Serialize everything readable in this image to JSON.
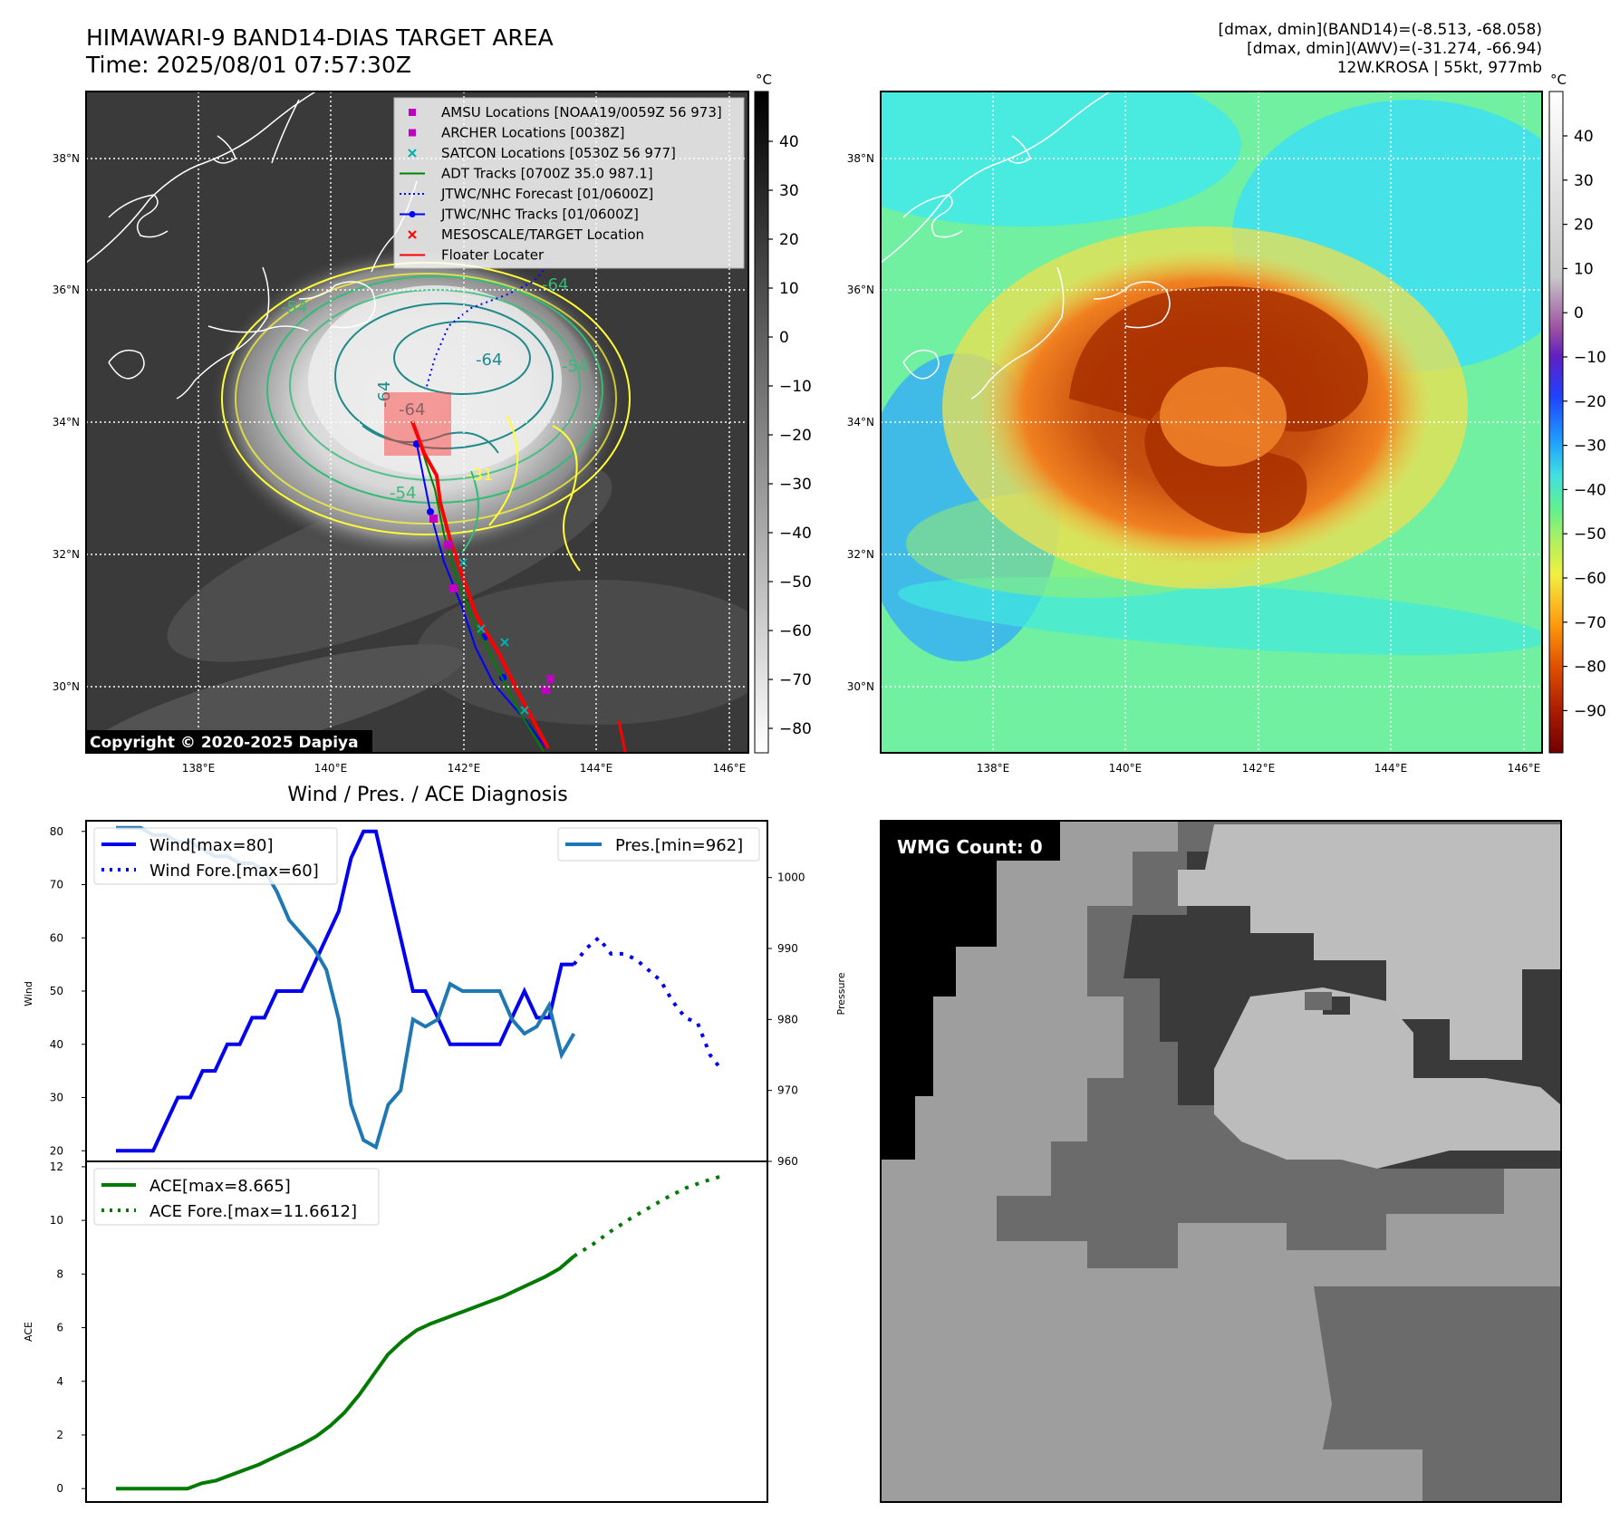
{
  "header": {
    "title_line1": "HIMAWARI-9 BAND14-DIAS TARGET AREA",
    "title_line2": "Time: 2025/08/01 07:57:30Z",
    "info_line1": "[dmax, dmin](BAND14)=(-8.513, -68.058)",
    "info_line2": "[dmax, dmin](AWV)=(-31.274, -66.94)",
    "info_line3": "12W.KROSA | 55kt, 977mb"
  },
  "ir_map": {
    "lat_labels": [
      "38°N",
      "36°N",
      "34°N",
      "32°N",
      "30°N"
    ],
    "lon_labels": [
      "138°E",
      "140°E",
      "142°E",
      "144°E",
      "146°E"
    ],
    "contour_labels": [
      "-54",
      "-64",
      "-54",
      "-54",
      "-64",
      "-31",
      "-64",
      "-64"
    ],
    "copyright": "Copyright © 2020-2025 Dapiya",
    "colorbar_unit": "°C",
    "colorbar_ticks": [
      "40",
      "30",
      "20",
      "10",
      "0",
      "−10",
      "−20",
      "−30",
      "−40",
      "−50",
      "−60",
      "−70",
      "−80"
    ],
    "legend": [
      {
        "label": "AMSU Locations [NOAA19/0059Z 56 973]",
        "color": "#c000c0",
        "marker": "square"
      },
      {
        "label": "ARCHER Locations [0038Z]",
        "color": "#c000c0",
        "marker": "square"
      },
      {
        "label": "SATCON Locations [0530Z 56 977]",
        "color": "#00b0b0",
        "marker": "x"
      },
      {
        "label": "ADT Tracks [0700Z 35.0 987.1]",
        "color": "#008000",
        "marker": "line"
      },
      {
        "label": "JTWC/NHC Forecast [01/0600Z]",
        "color": "#0000ff",
        "marker": "dotted"
      },
      {
        "label": "JTWC/NHC Tracks [01/0600Z]",
        "color": "#0000ff",
        "marker": "line-dot"
      },
      {
        "label": "MESOSCALE/TARGET Location",
        "color": "#ff0000",
        "marker": "x"
      },
      {
        "label": "Floater Locater",
        "color": "#ff0000",
        "marker": "line"
      }
    ]
  },
  "awv_map": {
    "lat_labels": [
      "38°N",
      "36°N",
      "34°N",
      "32°N",
      "30°N"
    ],
    "lon_labels": [
      "138°E",
      "140°E",
      "142°E",
      "144°E",
      "146°E"
    ],
    "colorbar_unit": "°C",
    "colorbar_ticks": [
      "40",
      "30",
      "20",
      "10",
      "0",
      "−10",
      "−20",
      "−30",
      "−40",
      "−50",
      "−60",
      "−70",
      "−80",
      "−90"
    ]
  },
  "diagnosis": {
    "title": "Wind / Pres. / ACE Diagnosis",
    "wind_ylabel": "Wind",
    "pres_ylabel": "Pressure",
    "ace_ylabel": "ACE",
    "wind_legend": [
      "Wind[max=80]",
      "Wind Fore.[max=60]"
    ],
    "pres_legend": [
      "Pres.[min=962]"
    ],
    "ace_legend": [
      "ACE[max=8.665]",
      "ACE Fore.[max=11.6612]"
    ]
  },
  "wmg": {
    "label": "WMG Count: 0"
  },
  "colors": {
    "wind": "#0000ee",
    "pressure": "#1f77b4",
    "ace": "#007a00",
    "track": "#ff0000",
    "contour_yellow": "#ffff33",
    "contour_green": "#33bb77",
    "contour_teal": "#208a8a"
  },
  "chart_data": [
    {
      "type": "line",
      "title": "Wind / Pres. / ACE Diagnosis",
      "ylabel": "Wind",
      "ylim": [
        18,
        82
      ],
      "series": [
        {
          "name": "Wind[max=80]",
          "values": [
            20,
            20,
            20,
            20,
            25,
            30,
            30,
            35,
            35,
            40,
            40,
            45,
            45,
            50,
            50,
            50,
            55,
            60,
            65,
            75,
            80,
            80,
            70,
            60,
            50,
            50,
            45,
            40,
            40,
            40,
            40,
            40,
            45,
            50,
            45,
            45,
            55,
            55
          ]
        },
        {
          "name": "Wind Fore.[max=60]",
          "values": [
            55,
            58,
            60,
            57,
            57,
            56,
            54,
            52,
            48,
            45,
            44,
            38,
            35
          ]
        }
      ]
    },
    {
      "type": "line",
      "ylabel": "Pressure",
      "ylim": [
        960,
        1008
      ],
      "series": [
        {
          "name": "Pres.[min=962]",
          "values": [
            1007,
            1007,
            1007,
            1006,
            1006,
            1005,
            1005,
            1004,
            1003,
            1003,
            1002,
            1002,
            1001,
            998,
            994,
            992,
            990,
            987,
            980,
            968,
            963,
            962,
            968,
            970,
            980,
            979,
            980,
            985,
            984,
            984,
            984,
            984,
            980,
            978,
            979,
            982,
            975,
            978
          ]
        }
      ]
    },
    {
      "type": "line",
      "ylabel": "ACE",
      "ylim": [
        -0.5,
        12.2
      ],
      "series": [
        {
          "name": "ACE[max=8.665]",
          "values": [
            0,
            0,
            0,
            0,
            0,
            0,
            0.2,
            0.3,
            0.5,
            0.7,
            0.9,
            1.15,
            1.4,
            1.65,
            1.95,
            2.35,
            2.85,
            3.5,
            4.25,
            5.0,
            5.5,
            5.9,
            6.15,
            6.35,
            6.55,
            6.75,
            6.95,
            7.15,
            7.4,
            7.65,
            7.9,
            8.2,
            8.665
          ]
        },
        {
          "name": "ACE Fore.[max=11.6612]",
          "values": [
            8.665,
            9.1,
            9.6,
            10.05,
            10.45,
            10.85,
            11.2,
            11.45,
            11.6612
          ]
        }
      ]
    }
  ]
}
